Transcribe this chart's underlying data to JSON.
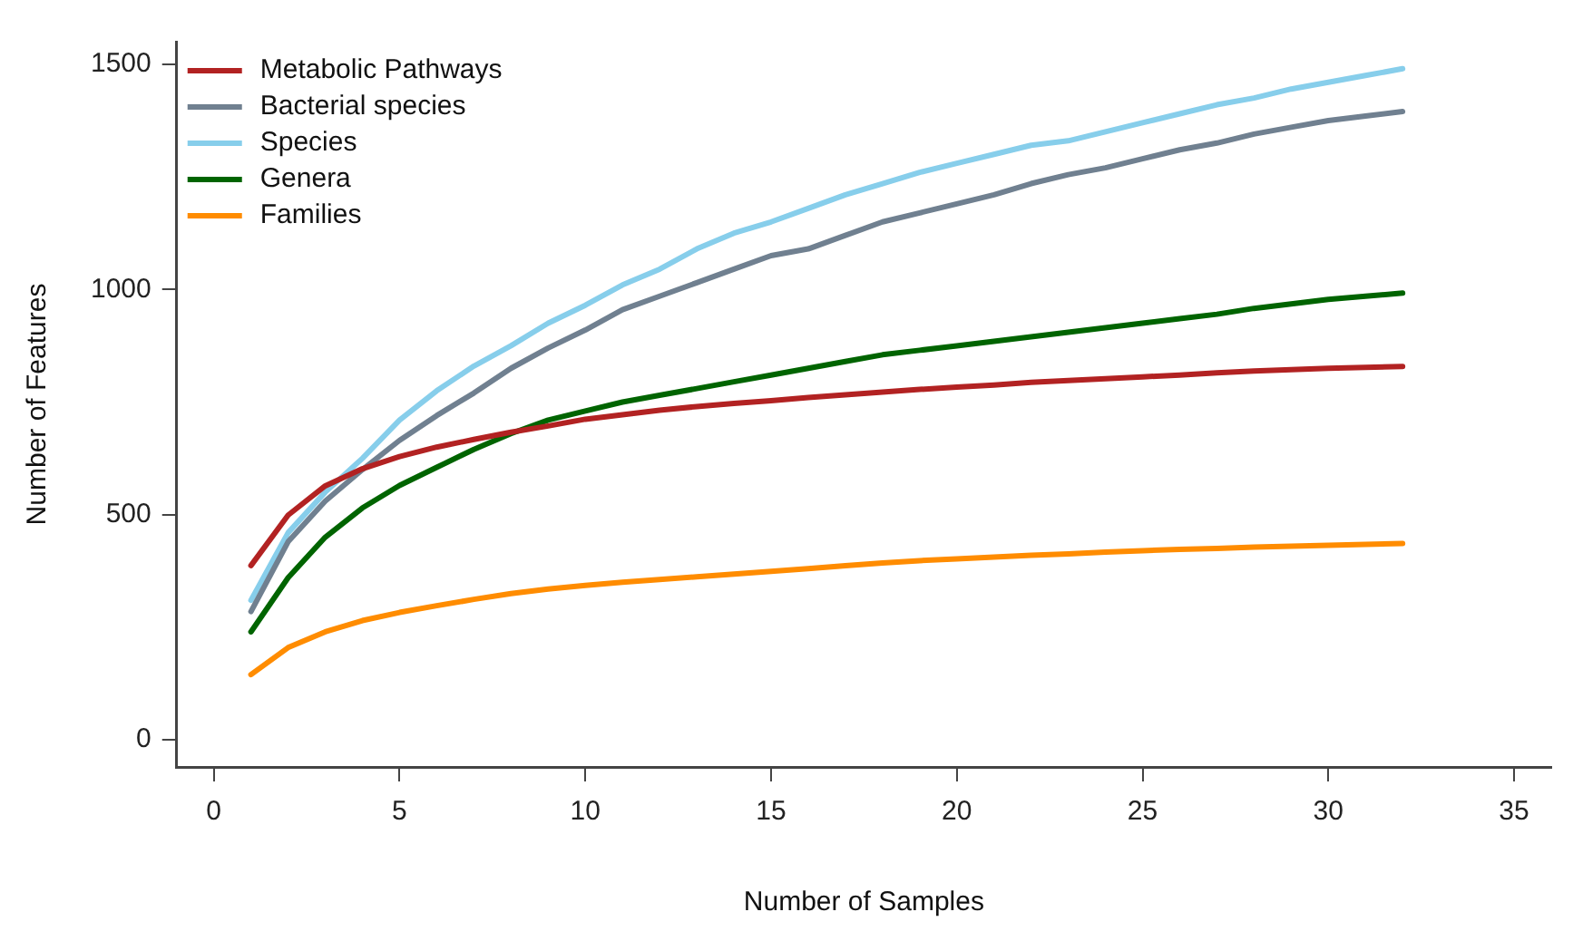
{
  "chart_data": {
    "type": "line",
    "xlabel": "Number of Samples",
    "ylabel": "Number of Features",
    "x": [
      1,
      2,
      3,
      4,
      5,
      6,
      7,
      8,
      9,
      10,
      11,
      12,
      13,
      14,
      15,
      16,
      17,
      18,
      19,
      20,
      21,
      22,
      23,
      24,
      25,
      26,
      27,
      28,
      29,
      30,
      31,
      32
    ],
    "series": [
      {
        "name": "Metabolic Pathways",
        "color": "#b22222",
        "values": [
          387,
          499,
          564,
          602,
          629,
          650,
          667,
          683,
          697,
          712,
          722,
          732,
          740,
          747,
          753,
          760,
          766,
          772,
          778,
          783,
          788,
          794,
          798,
          802,
          806,
          810,
          815,
          819,
          822,
          825,
          827,
          829
        ]
      },
      {
        "name": "Bacterial species",
        "color": "#708090",
        "values": [
          285,
          440,
          530,
          600,
          665,
          720,
          770,
          825,
          870,
          910,
          955,
          985,
          1015,
          1045,
          1075,
          1090,
          1120,
          1150,
          1170,
          1190,
          1210,
          1235,
          1255,
          1270,
          1290,
          1310,
          1325,
          1345,
          1360,
          1375,
          1385,
          1395
        ]
      },
      {
        "name": "Species",
        "color": "#87ceeb",
        "values": [
          310,
          460,
          550,
          625,
          710,
          775,
          830,
          875,
          925,
          965,
          1010,
          1045,
          1090,
          1125,
          1150,
          1180,
          1210,
          1235,
          1260,
          1280,
          1300,
          1320,
          1330,
          1350,
          1370,
          1390,
          1410,
          1425,
          1445,
          1460,
          1475,
          1490
        ]
      },
      {
        "name": "Genera",
        "color": "#006400",
        "values": [
          240,
          360,
          450,
          515,
          565,
          605,
          645,
          680,
          710,
          730,
          750,
          765,
          780,
          795,
          810,
          825,
          840,
          855,
          865,
          875,
          885,
          895,
          905,
          915,
          925,
          935,
          945,
          958,
          968,
          978,
          985,
          992
        ]
      },
      {
        "name": "Families",
        "color": "#ff8c00",
        "values": [
          145,
          205,
          240,
          265,
          283,
          298,
          312,
          325,
          335,
          343,
          350,
          356,
          362,
          368,
          374,
          380,
          387,
          393,
          398,
          402,
          406,
          410,
          413,
          417,
          420,
          423,
          425,
          428,
          430,
          432,
          434,
          436
        ]
      }
    ],
    "xlim": [
      -1,
      36
    ],
    "ylim": [
      -60,
      1550
    ],
    "xticks": [
      0,
      5,
      10,
      15,
      20,
      25,
      30,
      35
    ],
    "yticks": [
      0,
      500,
      1000,
      1500
    ],
    "grid": false,
    "legend": "top left",
    "marker": "none",
    "line_style": "solid"
  }
}
